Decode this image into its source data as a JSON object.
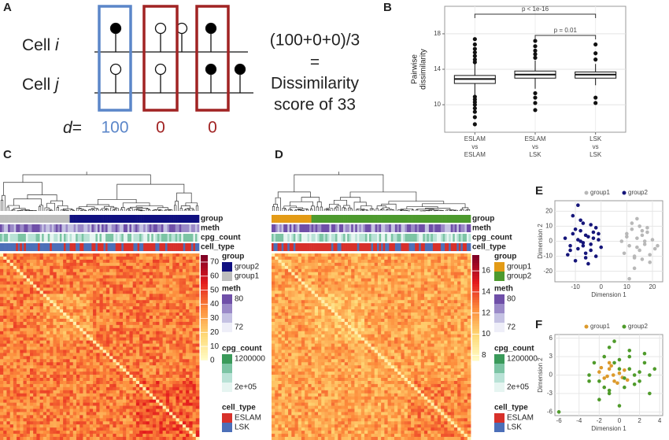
{
  "diagram": {
    "panel": "A",
    "cell_word": "Cell",
    "cells": [
      "i",
      "j"
    ],
    "d_label": "d",
    "d_eq": "=",
    "d_values": [
      100,
      0,
      0
    ],
    "formula": "(100+0+0)/3",
    "equals": "=",
    "result": [
      "Dissimilarity",
      "score of 33"
    ]
  },
  "chart_data": [
    {
      "type": "box",
      "panel": "B",
      "ylabel": [
        "Pairwise",
        "dissimilarity"
      ],
      "categories": [
        [
          "ESLAM",
          "vs",
          "ESLAM"
        ],
        [
          "ESLAM",
          "vs",
          "LSK"
        ],
        [
          "LSK",
          "vs",
          "LSK"
        ]
      ],
      "boxes": [
        {
          "whislo": 11.0,
          "q1": 12.4,
          "med": 12.9,
          "q3": 13.3,
          "whishi": 14.6,
          "outliers": [
            7.8,
            8.6,
            9.2,
            9.6,
            10.0,
            10.3,
            10.6,
            10.9,
            14.8,
            15.1,
            15.5,
            15.9,
            16.3,
            16.8,
            17.4
          ]
        },
        {
          "whislo": 11.8,
          "q1": 13.0,
          "med": 13.4,
          "q3": 13.8,
          "whishi": 15.0,
          "outliers": [
            9.4,
            10.2,
            10.8,
            11.3,
            15.3,
            15.7,
            16.1,
            16.6,
            17.2
          ]
        },
        {
          "whislo": 12.2,
          "q1": 13.0,
          "med": 13.4,
          "q3": 13.7,
          "whishi": 14.6,
          "outliers": [
            10.2,
            10.8,
            15.1,
            15.8,
            16.8
          ]
        }
      ],
      "comparisons": [
        {
          "label": "p < 1e-16"
        },
        {
          "label": "p = 0.01"
        }
      ],
      "ylim": [
        6.9,
        21.1
      ],
      "yticks": [
        10,
        14,
        18
      ],
      "grid": true
    },
    {
      "type": "scatter",
      "panel": "E",
      "xlabel": "Dimension 1",
      "ylabel": "Dimension 2",
      "xlim": [
        -18,
        24
      ],
      "xticks": [
        -10,
        0,
        10,
        20
      ],
      "ylim": [
        -27,
        27
      ],
      "yticks": [
        -20,
        -10,
        0,
        10,
        20
      ],
      "grid": true,
      "series": [
        {
          "name": "group1",
          "color": "#b8b8b8",
          "x": [
            8,
            10,
            11,
            12,
            13,
            14,
            15,
            16,
            17,
            18,
            19,
            20,
            9,
            12,
            14,
            16,
            18,
            21,
            10,
            13,
            15,
            17,
            11,
            19,
            14,
            22,
            13,
            16
          ],
          "y": [
            0,
            5,
            -3,
            8,
            -10,
            2,
            -6,
            4,
            -2,
            9,
            -14,
            1,
            -8,
            12,
            -4,
            -12,
            6,
            -5,
            3,
            -18,
            10,
            0,
            -25,
            -9,
            15,
            -3,
            -11,
            7
          ]
        },
        {
          "name": "group2",
          "color": "#15157a",
          "x": [
            -14,
            -12,
            -11,
            -10,
            -9,
            -8,
            -7,
            -6,
            -5,
            -4,
            -3,
            -2,
            -1,
            0,
            -13,
            -10,
            -8,
            -6,
            -4,
            -2,
            -9,
            -7,
            -5,
            -3,
            -11,
            -8,
            -6,
            -4,
            -12,
            -1,
            -9,
            -7
          ],
          "y": [
            2,
            -3,
            5,
            8,
            -5,
            0,
            12,
            -8,
            3,
            -2,
            6,
            -10,
            1,
            -4,
            -9,
            -13,
            14,
            4,
            -6,
            9,
            24,
            -1,
            -15,
            2,
            17,
            7,
            -11,
            11,
            -6,
            5,
            1,
            -3
          ]
        }
      ]
    },
    {
      "type": "scatter",
      "panel": "F",
      "xlabel": "Dimension 1",
      "ylabel": "Dimension 2",
      "xlim": [
        -6.4,
        4.3
      ],
      "xticks": [
        -6,
        -4,
        -2,
        0,
        2,
        4
      ],
      "ylim": [
        -6.6,
        6.6
      ],
      "yticks": [
        -6,
        -3,
        0,
        3,
        6
      ],
      "grid": true,
      "series": [
        {
          "name": "group1",
          "color": "#dc9a2c",
          "x": [
            -2,
            -1.5,
            -1,
            -0.5,
            0,
            0.5,
            -1.2,
            -0.8,
            -0.2,
            0.3,
            -1.8,
            -0.6,
            0.8,
            -1
          ],
          "y": [
            0.5,
            -0.5,
            1,
            -1,
            0.3,
            0.8,
            -0.2,
            1.5,
            -1.3,
            -0.4,
            1.2,
            0,
            -0.8,
            2
          ]
        },
        {
          "name": "group2",
          "color": "#4f9b2b",
          "x": [
            -6,
            -3,
            -2.5,
            -2,
            -1.5,
            -1,
            -0.5,
            0,
            0.5,
            1,
            1.5,
            2,
            2.5,
            3,
            3.5,
            -2,
            -1,
            0,
            1,
            2,
            -1.5,
            -0.5,
            0.5,
            1.5,
            -3,
            2.5,
            0,
            -1,
            1,
            3
          ],
          "y": [
            -6,
            0,
            2,
            -1,
            3,
            -3,
            5.5,
            1,
            -2,
            4,
            0,
            -1,
            2,
            -3,
            1,
            -4,
            4.5,
            -5,
            3,
            0.5,
            -2,
            2,
            -0.5,
            -1.5,
            -1,
            3.5,
            2.5,
            -2.5,
            1,
            0
          ]
        }
      ]
    },
    {
      "type": "heatmap",
      "panel": "C",
      "rows": [
        "group",
        "meth",
        "cpg_count",
        "cell_type"
      ],
      "clim": [
        0,
        75
      ],
      "cticks": [
        0,
        10,
        20,
        30,
        40,
        50,
        60,
        70
      ],
      "legends": [
        {
          "title": "group",
          "labels": [
            "group2",
            "group1"
          ],
          "colors": [
            "#101080",
            "#bdbdbd"
          ]
        },
        {
          "title": "meth",
          "labels": [
            "80",
            "72"
          ],
          "colors": [
            "#6f4fa8",
            "#9b8ac8",
            "#c5c2e3",
            "#eeeef8"
          ]
        },
        {
          "title": "cpg_count",
          "labels": [
            "1200000",
            "2e+05"
          ],
          "colors": [
            "#3a9a5a",
            "#7cc4a4",
            "#b9e2d6",
            "#e6f5f1"
          ]
        },
        {
          "title": "cell_type",
          "labels": [
            "ESLAM",
            "LSK"
          ],
          "colors": [
            "#d7302a",
            "#4c6fb8"
          ]
        }
      ]
    },
    {
      "type": "heatmap",
      "panel": "D",
      "rows": [
        "group",
        "meth",
        "cpg_count",
        "cell_type"
      ],
      "clim": [
        7.5,
        17.5
      ],
      "cticks": [
        8,
        10,
        12,
        14,
        16
      ],
      "legends": [
        {
          "title": "group",
          "labels": [
            "group1",
            "group2"
          ],
          "colors": [
            "#e39b16",
            "#4d9a2e"
          ]
        },
        {
          "title": "meth",
          "labels": [
            "80",
            "72"
          ],
          "colors": [
            "#6f4fa8",
            "#9b8ac8",
            "#c5c2e3",
            "#eeeef8"
          ]
        },
        {
          "title": "cpg_count",
          "labels": [
            "1200000",
            "2e+05"
          ],
          "colors": [
            "#3a9a5a",
            "#7cc4a4",
            "#b9e2d6",
            "#e6f5f1"
          ]
        },
        {
          "title": "cell_type",
          "labels": [
            "ESLAM",
            "LSK"
          ],
          "colors": [
            "#d7302a",
            "#4c6fb8"
          ]
        }
      ]
    }
  ]
}
